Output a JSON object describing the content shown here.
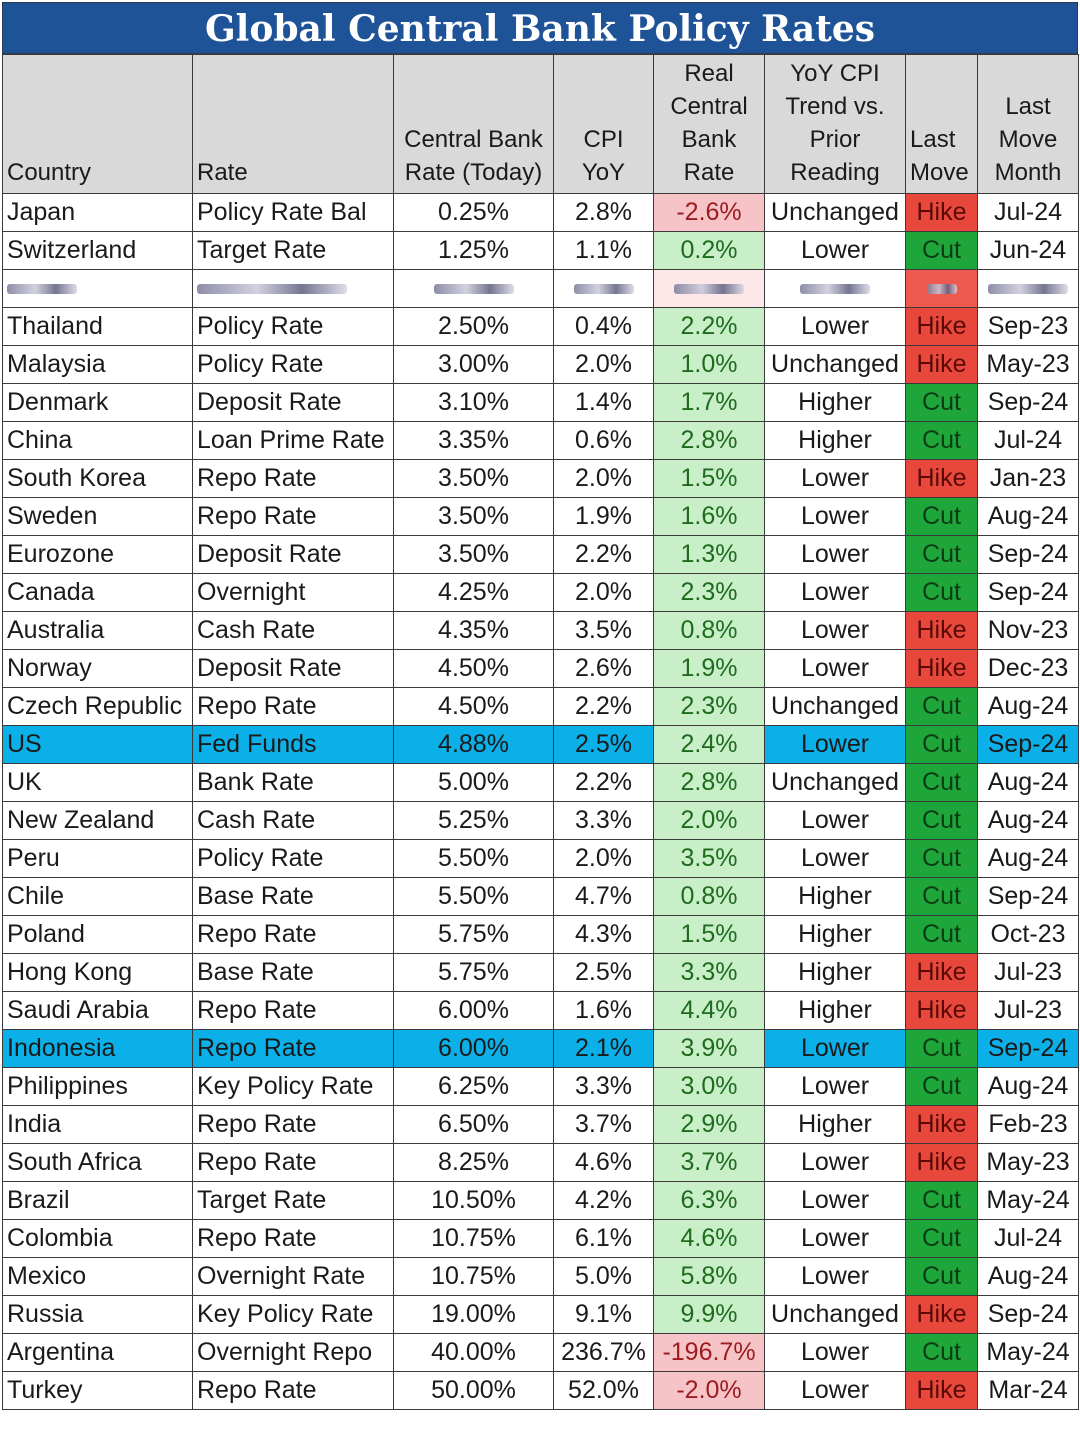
{
  "title": "Global Central Bank Policy Rates",
  "columns": [
    {
      "label_lines": [
        "Country"
      ]
    },
    {
      "label_lines": [
        "Rate"
      ]
    },
    {
      "label_lines": [
        "Central Bank",
        "Rate (Today)"
      ]
    },
    {
      "label_lines": [
        "CPI",
        "YoY"
      ]
    },
    {
      "label_lines": [
        "Real",
        "Central",
        "Bank",
        "Rate"
      ]
    },
    {
      "label_lines": [
        "YoY CPI",
        "Trend vs.",
        "Prior",
        "Reading"
      ]
    },
    {
      "label_lines": [
        "Last",
        "Move"
      ]
    },
    {
      "label_lines": [
        "Last",
        "Move",
        "Month"
      ]
    }
  ],
  "rows": [
    {
      "country": "Japan",
      "rate": "Policy Rate Bal",
      "cb_rate": "0.25%",
      "cpi": "2.8%",
      "real": "-2.6%",
      "trend": "Unchanged",
      "last_move": "Hike",
      "month": "Jul-24"
    },
    {
      "country": "Switzerland",
      "rate": "Target Rate",
      "cb_rate": "1.25%",
      "cpi": "1.1%",
      "real": "0.2%",
      "trend": "Lower",
      "last_move": "Cut",
      "month": "Jun-24"
    },
    {
      "redacted": true,
      "real_sign": "neg",
      "last_move_kind": "hike"
    },
    {
      "country": "Thailand",
      "rate": "Policy Rate",
      "cb_rate": "2.50%",
      "cpi": "0.4%",
      "real": "2.2%",
      "trend": "Lower",
      "last_move": "Hike",
      "month": "Sep-23"
    },
    {
      "country": "Malaysia",
      "rate": "Policy Rate",
      "cb_rate": "3.00%",
      "cpi": "2.0%",
      "real": "1.0%",
      "trend": "Unchanged",
      "last_move": "Hike",
      "month": "May-23"
    },
    {
      "country": "Denmark",
      "rate": "Deposit Rate",
      "cb_rate": "3.10%",
      "cpi": "1.4%",
      "real": "1.7%",
      "trend": "Higher",
      "last_move": "Cut",
      "month": "Sep-24"
    },
    {
      "country": "China",
      "rate": "Loan Prime Rate",
      "cb_rate": "3.35%",
      "cpi": "0.6%",
      "real": "2.8%",
      "trend": "Higher",
      "last_move": "Cut",
      "month": "Jul-24"
    },
    {
      "country": "South Korea",
      "rate": "Repo Rate",
      "cb_rate": "3.50%",
      "cpi": "2.0%",
      "real": "1.5%",
      "trend": "Lower",
      "last_move": "Hike",
      "month": "Jan-23"
    },
    {
      "country": "Sweden",
      "rate": "Repo Rate",
      "cb_rate": "3.50%",
      "cpi": "1.9%",
      "real": "1.6%",
      "trend": "Lower",
      "last_move": "Cut",
      "month": "Aug-24"
    },
    {
      "country": "Eurozone",
      "rate": "Deposit Rate",
      "cb_rate": "3.50%",
      "cpi": "2.2%",
      "real": "1.3%",
      "trend": "Lower",
      "last_move": "Cut",
      "month": "Sep-24"
    },
    {
      "country": "Canada",
      "rate": "Overnight",
      "cb_rate": "4.25%",
      "cpi": "2.0%",
      "real": "2.3%",
      "trend": "Lower",
      "last_move": "Cut",
      "month": "Sep-24"
    },
    {
      "country": "Australia",
      "rate": "Cash Rate",
      "cb_rate": "4.35%",
      "cpi": "3.5%",
      "real": "0.8%",
      "trend": "Lower",
      "last_move": "Hike",
      "month": "Nov-23"
    },
    {
      "country": "Norway",
      "rate": "Deposit Rate",
      "cb_rate": "4.50%",
      "cpi": "2.6%",
      "real": "1.9%",
      "trend": "Lower",
      "last_move": "Hike",
      "month": "Dec-23"
    },
    {
      "country": "Czech Republic",
      "rate": "Repo Rate",
      "cb_rate": "4.50%",
      "cpi": "2.2%",
      "real": "2.3%",
      "trend": "Unchanged",
      "last_move": "Cut",
      "month": "Aug-24"
    },
    {
      "country": "US",
      "rate": "Fed Funds",
      "cb_rate": "4.88%",
      "cpi": "2.5%",
      "real": "2.4%",
      "trend": "Lower",
      "last_move": "Cut",
      "month": "Sep-24",
      "highlight": true
    },
    {
      "country": "UK",
      "rate": "Bank Rate",
      "cb_rate": "5.00%",
      "cpi": "2.2%",
      "real": "2.8%",
      "trend": "Unchanged",
      "last_move": "Cut",
      "month": "Aug-24"
    },
    {
      "country": "New Zealand",
      "rate": "Cash Rate",
      "cb_rate": "5.25%",
      "cpi": "3.3%",
      "real": "2.0%",
      "trend": "Lower",
      "last_move": "Cut",
      "month": "Aug-24"
    },
    {
      "country": "Peru",
      "rate": "Policy Rate",
      "cb_rate": "5.50%",
      "cpi": "2.0%",
      "real": "3.5%",
      "trend": "Lower",
      "last_move": "Cut",
      "month": "Aug-24"
    },
    {
      "country": "Chile",
      "rate": "Base Rate",
      "cb_rate": "5.50%",
      "cpi": "4.7%",
      "real": "0.8%",
      "trend": "Higher",
      "last_move": "Cut",
      "month": "Sep-24"
    },
    {
      "country": "Poland",
      "rate": "Repo Rate",
      "cb_rate": "5.75%",
      "cpi": "4.3%",
      "real": "1.5%",
      "trend": "Higher",
      "last_move": "Cut",
      "month": "Oct-23"
    },
    {
      "country": "Hong Kong",
      "rate": "Base Rate",
      "cb_rate": "5.75%",
      "cpi": "2.5%",
      "real": "3.3%",
      "trend": "Higher",
      "last_move": "Hike",
      "month": "Jul-23"
    },
    {
      "country": "Saudi Arabia",
      "rate": "Repo Rate",
      "cb_rate": "6.00%",
      "cpi": "1.6%",
      "real": "4.4%",
      "trend": "Higher",
      "last_move": "Hike",
      "month": "Jul-23"
    },
    {
      "country": "Indonesia",
      "rate": "Repo Rate",
      "cb_rate": "6.00%",
      "cpi": "2.1%",
      "real": "3.9%",
      "trend": "Lower",
      "last_move": "Cut",
      "month": "Sep-24",
      "highlight": true
    },
    {
      "country": "Philippines",
      "rate": "Key Policy Rate",
      "cb_rate": "6.25%",
      "cpi": "3.3%",
      "real": "3.0%",
      "trend": "Lower",
      "last_move": "Cut",
      "month": "Aug-24"
    },
    {
      "country": "India",
      "rate": "Repo Rate",
      "cb_rate": "6.50%",
      "cpi": "3.7%",
      "real": "2.9%",
      "trend": "Higher",
      "last_move": "Hike",
      "month": "Feb-23"
    },
    {
      "country": "South Africa",
      "rate": "Repo Rate",
      "cb_rate": "8.25%",
      "cpi": "4.6%",
      "real": "3.7%",
      "trend": "Lower",
      "last_move": "Hike",
      "month": "May-23"
    },
    {
      "country": "Brazil",
      "rate": "Target Rate",
      "cb_rate": "10.50%",
      "cpi": "4.2%",
      "real": "6.3%",
      "trend": "Lower",
      "last_move": "Cut",
      "month": "May-24"
    },
    {
      "country": "Colombia",
      "rate": "Repo Rate",
      "cb_rate": "10.75%",
      "cpi": "6.1%",
      "real": "4.6%",
      "trend": "Lower",
      "last_move": "Cut",
      "month": "Jul-24"
    },
    {
      "country": "Mexico",
      "rate": "Overnight Rate",
      "cb_rate": "10.75%",
      "cpi": "5.0%",
      "real": "5.8%",
      "trend": "Lower",
      "last_move": "Cut",
      "month": "Aug-24"
    },
    {
      "country": "Russia",
      "rate": "Key Policy Rate",
      "cb_rate": "19.00%",
      "cpi": "9.1%",
      "real": "9.9%",
      "trend": "Unchanged",
      "last_move": "Hike",
      "month": "Sep-24"
    },
    {
      "country": "Argentina",
      "rate": "Overnight Repo",
      "cb_rate": "40.00%",
      "cpi": "236.7%",
      "real": "-196.7%",
      "trend": "Lower",
      "last_move": "Cut",
      "month": "May-24"
    },
    {
      "country": "Turkey",
      "rate": "Repo Rate",
      "cb_rate": "50.00%",
      "cpi": "52.0%",
      "real": "-2.0%",
      "trend": "Lower",
      "last_move": "Hike",
      "month": "Mar-24"
    }
  ]
}
